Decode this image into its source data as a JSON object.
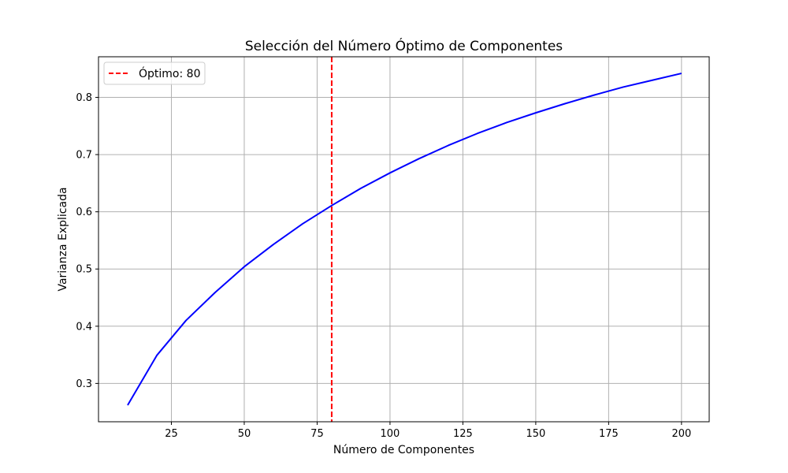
{
  "chart_data": {
    "type": "line",
    "title": "Selección del Número Óptimo de Componentes",
    "xlabel": "Número de Componentes",
    "ylabel": "Varianza Explicada",
    "xlim": [
      0,
      209.5
    ],
    "ylim": [
      0.233,
      0.871
    ],
    "xticks": [
      25,
      50,
      75,
      100,
      125,
      150,
      175,
      200
    ],
    "yticks": [
      0.3,
      0.4,
      0.5,
      0.6,
      0.7,
      0.8
    ],
    "grid": true,
    "legend_position": "top-left",
    "series": [
      {
        "name": "",
        "color": "#0000ff",
        "x": [
          10,
          20,
          30,
          40,
          50,
          60,
          70,
          80,
          90,
          100,
          110,
          120,
          130,
          140,
          150,
          160,
          170,
          180,
          190,
          200
        ],
        "values": [
          0.262,
          0.349,
          0.41,
          0.459,
          0.504,
          0.543,
          0.579,
          0.611,
          0.641,
          0.668,
          0.693,
          0.716,
          0.737,
          0.756,
          0.773,
          0.789,
          0.804,
          0.818,
          0.83,
          0.842
        ]
      }
    ],
    "vline": {
      "name": "Óptimo: 80",
      "x": 80,
      "color": "#ff0000",
      "style": "dashed"
    }
  }
}
